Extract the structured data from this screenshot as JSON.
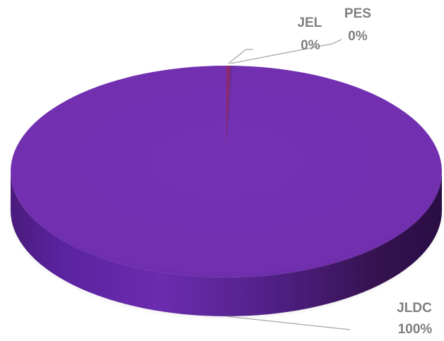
{
  "chart_data": {
    "type": "pie",
    "style": "3d",
    "title": "",
    "legend": "none",
    "slices": [
      {
        "label": "JLDC",
        "value": 100,
        "percent_label": "100%",
        "color": "#7230b0"
      },
      {
        "label": "JEL",
        "value": 0.3,
        "percent_label": "0%",
        "color": "#8b2a6e"
      },
      {
        "label": "PES",
        "value": 0.2,
        "percent_label": "0%",
        "color": "#6a2e9a"
      }
    ]
  },
  "colors": {
    "top_face": "#7230b0",
    "side_face_dark": "#2f0f4f",
    "side_face_light": "#6b2cae",
    "leader_line": "#a6a6a6",
    "label_text": "#7f7f7f"
  }
}
